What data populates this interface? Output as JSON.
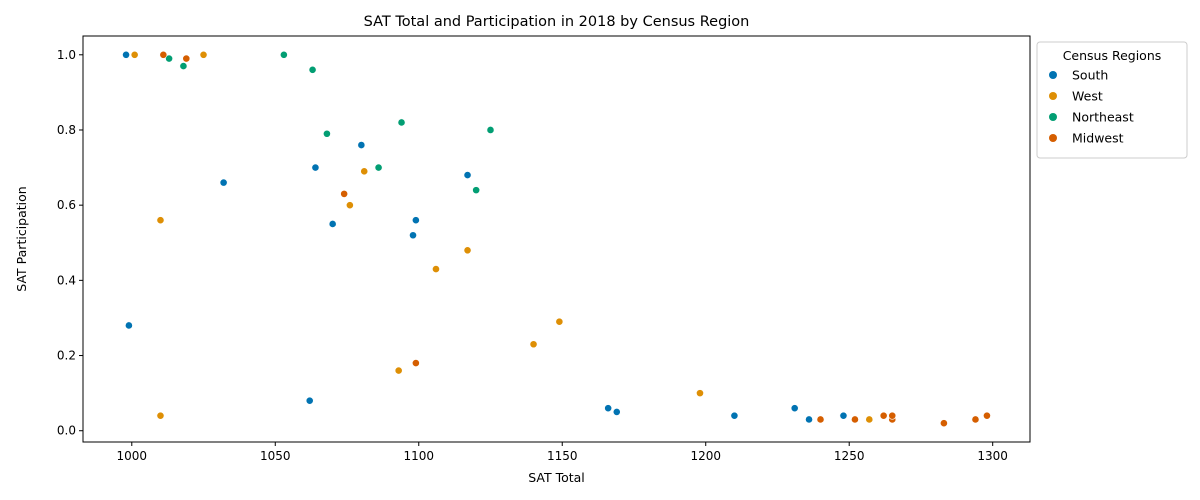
{
  "chart_data": {
    "type": "scatter",
    "title": "SAT Total and Participation in 2018 by Census Region",
    "xlabel": "SAT Total",
    "ylabel": "SAT Participation",
    "xlim": [
      983,
      1313
    ],
    "ylim": [
      -0.03,
      1.05
    ],
    "xticks": [
      1000,
      1050,
      1100,
      1150,
      1200,
      1250,
      1300
    ],
    "xtick_labels": [
      "1000",
      "1050",
      "1100",
      "1150",
      "1200",
      "1250",
      "1300"
    ],
    "yticks": [
      0.0,
      0.2,
      0.4,
      0.6,
      0.8,
      1.0
    ],
    "ytick_labels": [
      "0.0",
      "0.2",
      "0.4",
      "0.6",
      "0.8",
      "1.0"
    ],
    "grid": false,
    "legend": {
      "title": "Census Regions",
      "placement": "outside-upper-right"
    },
    "series": [
      {
        "name": "South",
        "color": "#0173b2",
        "points": [
          [
            998,
            1.0
          ],
          [
            999,
            0.28
          ],
          [
            1032,
            0.66
          ],
          [
            1062,
            0.08
          ],
          [
            1064,
            0.7
          ],
          [
            1070,
            0.55
          ],
          [
            1080,
            0.76
          ],
          [
            1098,
            0.52
          ],
          [
            1099,
            0.56
          ],
          [
            1117,
            0.68
          ],
          [
            1166,
            0.06
          ],
          [
            1169,
            0.05
          ],
          [
            1210,
            0.04
          ],
          [
            1231,
            0.06
          ],
          [
            1236,
            0.03
          ],
          [
            1248,
            0.04
          ]
        ]
      },
      {
        "name": "West",
        "color": "#de8f05",
        "points": [
          [
            1001,
            1.0
          ],
          [
            1010,
            0.56
          ],
          [
            1010,
            0.04
          ],
          [
            1025,
            1.0
          ],
          [
            1076,
            0.6
          ],
          [
            1081,
            0.69
          ],
          [
            1093,
            0.16
          ],
          [
            1106,
            0.43
          ],
          [
            1117,
            0.48
          ],
          [
            1140,
            0.23
          ],
          [
            1149,
            0.29
          ],
          [
            1198,
            0.1
          ],
          [
            1257,
            0.03
          ]
        ]
      },
      {
        "name": "Northeast",
        "color": "#029e73",
        "points": [
          [
            1013,
            0.99
          ],
          [
            1018,
            0.97
          ],
          [
            1053,
            1.0
          ],
          [
            1063,
            0.96
          ],
          [
            1068,
            0.79
          ],
          [
            1086,
            0.7
          ],
          [
            1094,
            0.82
          ],
          [
            1120,
            0.64
          ],
          [
            1125,
            0.8
          ]
        ]
      },
      {
        "name": "Midwest",
        "color": "#d55e00",
        "points": [
          [
            1011,
            1.0
          ],
          [
            1019,
            0.99
          ],
          [
            1074,
            0.63
          ],
          [
            1099,
            0.18
          ],
          [
            1240,
            0.03
          ],
          [
            1252,
            0.03
          ],
          [
            1262,
            0.04
          ],
          [
            1265,
            0.03
          ],
          [
            1265,
            0.04
          ],
          [
            1283,
            0.02
          ],
          [
            1294,
            0.03
          ],
          [
            1298,
            0.04
          ]
        ]
      }
    ]
  }
}
